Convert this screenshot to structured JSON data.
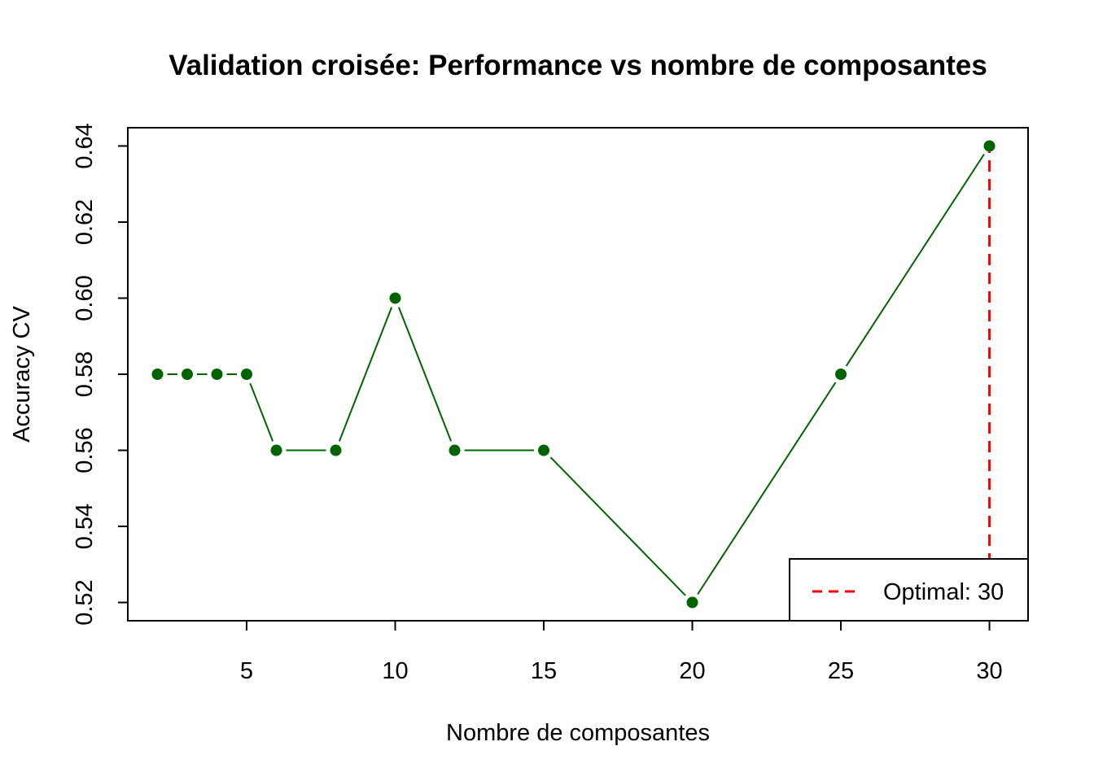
{
  "chart_data": {
    "type": "line",
    "title": "Validation croisée: Performance vs nombre de composantes",
    "xlabel": "Nombre de composantes",
    "ylabel": "Accuracy CV",
    "x": [
      2,
      3,
      4,
      5,
      6,
      8,
      10,
      12,
      15,
      20,
      25,
      30
    ],
    "series": [
      {
        "values": [
          0.58,
          0.58,
          0.58,
          0.58,
          0.56,
          0.56,
          0.6,
          0.56,
          0.56,
          0.52,
          0.58,
          0.64
        ],
        "color": "#006400"
      }
    ],
    "xlim": [
      1.0,
      31.3
    ],
    "ylim": [
      0.5152,
      0.6448
    ],
    "xticks": [
      5,
      10,
      15,
      20,
      25,
      30
    ],
    "xtick_labels": [
      "5",
      "10",
      "15",
      "20",
      "25",
      "30"
    ],
    "yticks": [
      0.52,
      0.54,
      0.56,
      0.58,
      0.6,
      0.62,
      0.64
    ],
    "ytick_labels": [
      "0.52",
      "0.54",
      "0.56",
      "0.58",
      "0.60",
      "0.62",
      "0.64"
    ],
    "vline": {
      "x": 30,
      "color": "#ff0000",
      "style": "dashed"
    },
    "legend": {
      "position": "bottom-right",
      "entries": [
        {
          "label": "Optimal: 30",
          "color": "#ff0000",
          "style": "dashed"
        }
      ]
    },
    "grid": false
  }
}
